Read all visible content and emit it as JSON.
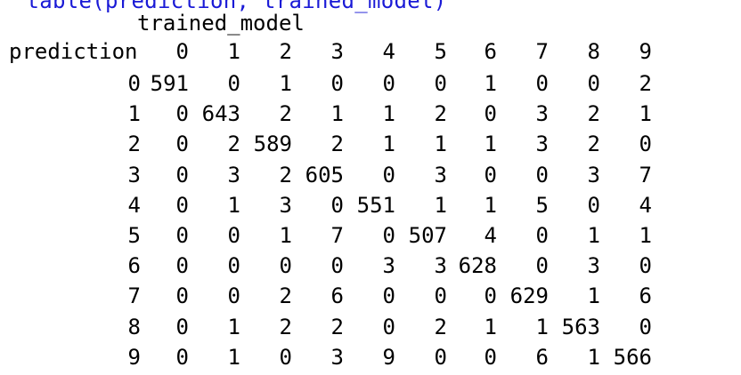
{
  "console": {
    "cut_line": "  table(prediction, trained_model)",
    "col_var": "trained_model",
    "row_var": "prediction",
    "col_labels": [
      "0",
      "1",
      "2",
      "3",
      "4",
      "5",
      "6",
      "7",
      "8",
      "9"
    ],
    "row_labels": [
      "0",
      "1",
      "2",
      "3",
      "4",
      "5",
      "6",
      "7",
      "8",
      "9"
    ],
    "rows": [
      [
        "591",
        "0",
        "1",
        "0",
        "0",
        "0",
        "1",
        "0",
        "0",
        "2"
      ],
      [
        "0",
        "643",
        "2",
        "1",
        "1",
        "2",
        "0",
        "3",
        "2",
        "1"
      ],
      [
        "0",
        "2",
        "589",
        "2",
        "1",
        "1",
        "1",
        "3",
        "2",
        "0"
      ],
      [
        "0",
        "3",
        "2",
        "605",
        "0",
        "3",
        "0",
        "0",
        "3",
        "7"
      ],
      [
        "0",
        "1",
        "3",
        "0",
        "551",
        "1",
        "1",
        "5",
        "0",
        "4"
      ],
      [
        "0",
        "0",
        "1",
        "7",
        "0",
        "507",
        "4",
        "0",
        "1",
        "1"
      ],
      [
        "0",
        "0",
        "0",
        "0",
        "3",
        "3",
        "628",
        "0",
        "3",
        "0"
      ],
      [
        "0",
        "0",
        "2",
        "6",
        "0",
        "0",
        "0",
        "629",
        "1",
        "6"
      ],
      [
        "0",
        "1",
        "2",
        "2",
        "0",
        "2",
        "1",
        "1",
        "563",
        "0"
      ],
      [
        "0",
        "1",
        "0",
        "3",
        "9",
        "0",
        "0",
        "6",
        "1",
        "566"
      ]
    ],
    "text_color": "#000000",
    "prompt_color": "#1a1ad6"
  }
}
